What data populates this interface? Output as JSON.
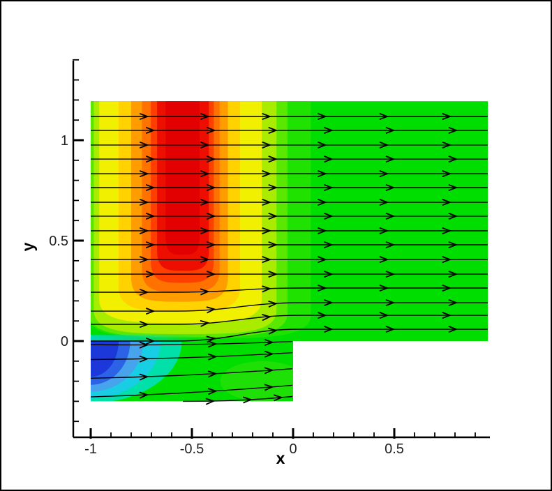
{
  "figure": {
    "background": "#FFFFFF",
    "border_color": "#000000"
  },
  "chart_data": {
    "type": "contour-streamline",
    "title": "",
    "xlabel": "x",
    "ylabel": "y",
    "x_axis": {
      "min": -1.09,
      "max": 0.975,
      "major_ticks": [
        -1,
        -0.5,
        0,
        0.5
      ],
      "major_labels": [
        "-1",
        "-0.5",
        "0",
        "0.5"
      ],
      "minor_step": 0.1,
      "minor_range": [
        -1,
        0.9
      ]
    },
    "y_axis": {
      "min": -0.48,
      "max": 1.4,
      "major_ticks": [
        0,
        0.5,
        1
      ],
      "major_labels": [
        "0",
        "0.5",
        "1"
      ],
      "minor_step": 0.1,
      "minor_range": [
        -0.4,
        1.4
      ]
    },
    "domain": {
      "upper_region": {
        "x": [
          -1,
          0.962
        ],
        "y": [
          0,
          1.194
        ]
      },
      "lower_region": {
        "x": [
          -1,
          0
        ],
        "y": [
          -0.3,
          0
        ]
      },
      "step_corner": [
        0,
        0
      ],
      "base_color": "#00DE00"
    },
    "contour_bands_upper": [
      {
        "left": -1.02,
        "right": 0.088,
        "y_bottom": 0.012,
        "color": "#1FE200"
      },
      {
        "left": -1.01,
        "right": -0.028,
        "y_bottom": 0.02,
        "color": "#5AE800"
      },
      {
        "left": -0.985,
        "right": -0.082,
        "y_bottom": 0.035,
        "color": "#AAEC00"
      },
      {
        "left": -0.958,
        "right": -0.155,
        "y_bottom": 0.09,
        "color": "#F1F000"
      },
      {
        "left": -0.862,
        "right": -0.262,
        "y_bottom": 0.148,
        "color": "#FFD200"
      },
      {
        "left": -0.8,
        "right": -0.322,
        "y_bottom": 0.196,
        "color": "#FF9C00"
      },
      {
        "left": -0.747,
        "right": -0.363,
        "y_bottom": 0.243,
        "color": "#FF7200"
      },
      {
        "left": -0.703,
        "right": -0.392,
        "y_bottom": 0.29,
        "color": "#FF3F00"
      },
      {
        "left": -0.672,
        "right": -0.416,
        "y_bottom": 0.35,
        "color": "#EE0E00"
      },
      {
        "left": -0.63,
        "right": -0.462,
        "y_bottom": 0.43,
        "color": "#E30000"
      }
    ],
    "near_wall_strip": {
      "x": [
        -1,
        -0.38
      ],
      "y": [
        0,
        0.03
      ],
      "color_left": "#00D6BE"
    },
    "lower_corner_bands": [
      {
        "reach_x": 0.45,
        "reach_y": 0.308,
        "color": "#00E0A8"
      },
      {
        "reach_x": 0.345,
        "reach_y": 0.285,
        "color": "#17CEE4"
      },
      {
        "reach_x": 0.26,
        "reach_y": 0.252,
        "color": "#47A3EC"
      },
      {
        "reach_x": 0.195,
        "reach_y": 0.218,
        "color": "#2B62E6"
      },
      {
        "reach_x": 0.138,
        "reach_y": 0.178,
        "color": "#1C38D8"
      }
    ],
    "lower_patch": {
      "cx": -0.15,
      "cy": -0.2,
      "rx": 0.21,
      "ry": 0.1,
      "color": "#55E614",
      "opacity": 0.35
    },
    "streamlines": {
      "color": "#000000",
      "upper": [
        {
          "y_start": 1.118,
          "y_end": 1.118
        },
        {
          "y_start": 1.049,
          "y_end": 1.049
        },
        {
          "y_start": 0.976,
          "y_end": 0.976
        },
        {
          "y_start": 0.906,
          "y_end": 0.906
        },
        {
          "y_start": 0.833,
          "y_end": 0.833
        },
        {
          "y_start": 0.764,
          "y_end": 0.764
        },
        {
          "y_start": 0.691,
          "y_end": 0.691
        },
        {
          "y_start": 0.622,
          "y_end": 0.622
        },
        {
          "y_start": 0.549,
          "y_end": 0.549
        },
        {
          "y_start": 0.479,
          "y_end": 0.479
        },
        {
          "y_start": 0.406,
          "y_end": 0.406
        },
        {
          "y_start": 0.333,
          "y_end": 0.333
        },
        {
          "y_start": 0.243,
          "y_end": 0.264
        },
        {
          "y_start": 0.149,
          "y_end": 0.191
        },
        {
          "y_start": 0.083,
          "y_end": 0.128
        },
        {
          "y_start": 0.0,
          "y_end": 0.059
        }
      ],
      "lower": [
        {
          "x_start": -1.0,
          "y_start": -0.018,
          "x_end": -0.003,
          "y_end": -0.002
        },
        {
          "x_start": -1.0,
          "y_start": -0.092,
          "x_end": -0.003,
          "y_end": -0.058
        },
        {
          "x_start": -1.0,
          "y_start": -0.185,
          "x_end": -0.003,
          "y_end": -0.138
        },
        {
          "x_start": -1.0,
          "y_start": -0.278,
          "x_end": -0.003,
          "y_end": -0.22
        },
        {
          "x_start": -0.545,
          "y_start": -0.3,
          "x_end": -0.003,
          "y_end": -0.276
        }
      ],
      "arrow_x_positions": [
        -0.72,
        -0.42,
        -0.115,
        0.16,
        0.465,
        0.775
      ],
      "lower_arrow_fractions": [
        0.28,
        0.62,
        0.9
      ]
    }
  }
}
